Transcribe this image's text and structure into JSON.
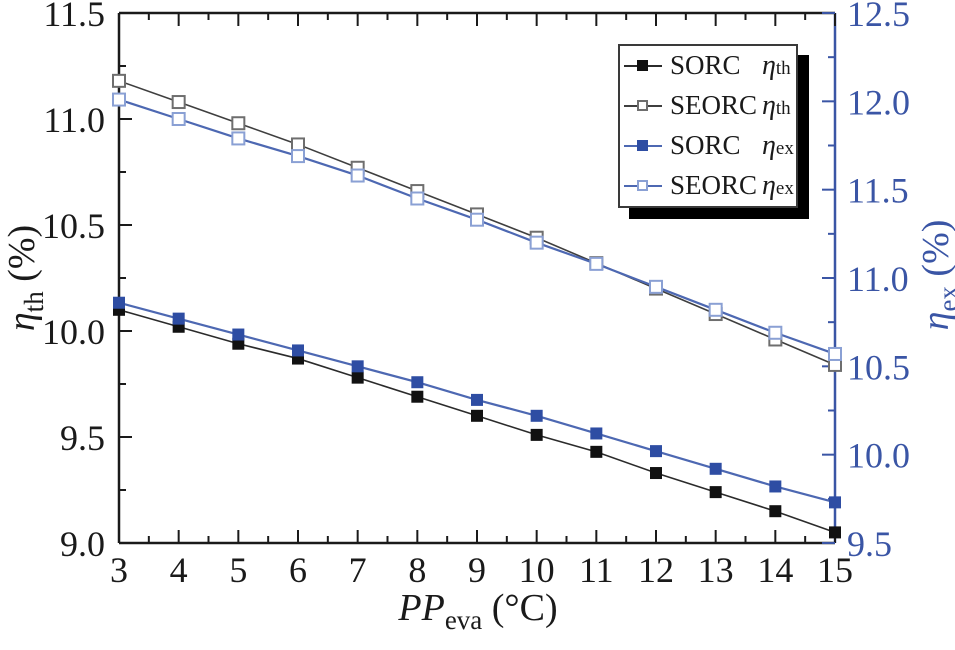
{
  "chart_data": {
    "type": "line",
    "title": "",
    "grid": "off",
    "legend_position": "top-right-inside",
    "x_label": {
      "main": "PP",
      "sub": "eva",
      "unit": " (°C)"
    },
    "x": [
      3,
      4,
      5,
      6,
      7,
      8,
      9,
      10,
      11,
      12,
      13,
      14,
      15
    ],
    "x_ticks": [
      "3",
      "4",
      "5",
      "6",
      "7",
      "8",
      "9",
      "10",
      "11",
      "12",
      "13",
      "14",
      "15"
    ],
    "x_range": [
      3,
      15
    ],
    "x_minor_step": 0.5,
    "axes": {
      "left": {
        "sym": "η",
        "sub": "th",
        "unit": " (%)",
        "range": [
          9.0,
          11.5
        ],
        "tick_step": 0.5,
        "minor_step": 0.25,
        "color": "#1a1a1a",
        "ticks": [
          "9.0",
          "9.5",
          "10.0",
          "10.5",
          "11.0",
          "11.5"
        ]
      },
      "right": {
        "sym": "η",
        "sub": "ex",
        "unit": " (%)",
        "range": [
          9.5,
          12.5
        ],
        "tick_step": 0.5,
        "minor_step": 0.25,
        "color": "#3a55a5",
        "ticks": [
          "9.5",
          "10.0",
          "10.5",
          "11.0",
          "11.5",
          "12.0",
          "12.5"
        ]
      }
    },
    "series": [
      {
        "id": "sorc-th",
        "name": "SORC",
        "sym": "η",
        "sub": "th",
        "axis": "left",
        "marker": "filled",
        "line_color": "#2b2b2b",
        "marker_color": "#111111",
        "values": [
          10.1,
          10.02,
          9.94,
          9.87,
          9.78,
          9.69,
          9.6,
          9.51,
          9.43,
          9.33,
          9.24,
          9.15,
          9.05
        ]
      },
      {
        "id": "seorc-th",
        "name": "SEORC",
        "sym": "η",
        "sub": "th",
        "axis": "left",
        "marker": "open",
        "line_color": "#3f3f3f",
        "marker_color": "#6e6e6e",
        "values": [
          11.18,
          11.08,
          10.98,
          10.88,
          10.77,
          10.66,
          10.55,
          10.44,
          10.32,
          10.2,
          10.08,
          9.96,
          9.84
        ]
      },
      {
        "id": "sorc-ex",
        "name": "SORC",
        "sym": "η",
        "sub": "ex",
        "axis": "right",
        "marker": "filled",
        "line_color": "#4d68b2",
        "marker_color": "#2e4da3",
        "values": [
          10.86,
          10.77,
          10.68,
          10.59,
          10.5,
          10.41,
          10.31,
          10.22,
          10.12,
          10.02,
          9.92,
          9.82,
          9.73
        ]
      },
      {
        "id": "seorc-ex",
        "name": "SEORC",
        "sym": "η",
        "sub": "ex",
        "axis": "right",
        "marker": "open",
        "line_color": "#4d68b2",
        "marker_color": "#8aa0d4",
        "values": [
          12.01,
          11.9,
          11.79,
          11.69,
          11.58,
          11.45,
          11.33,
          11.2,
          11.08,
          10.95,
          10.82,
          10.69,
          10.57
        ]
      }
    ]
  },
  "colors": {
    "background": "#ffffff",
    "axis_black": "#1a1a1a",
    "axis_blue": "#3a55a5",
    "legend_shadow": "#000000"
  }
}
